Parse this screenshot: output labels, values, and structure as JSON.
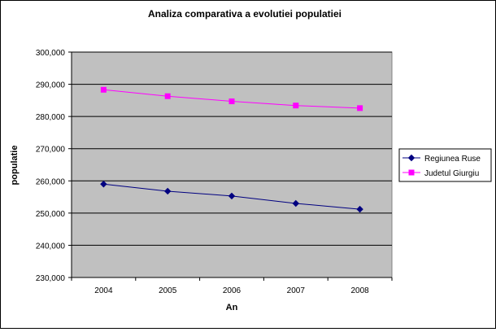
{
  "chart_data": {
    "type": "line",
    "title": "Analiza comparativa a evolutiei populatiei",
    "xlabel": "An",
    "ylabel": "populatie",
    "categories": [
      "2004",
      "2005",
      "2006",
      "2007",
      "2008"
    ],
    "ylim": [
      230000,
      300000
    ],
    "yticks": [
      "230,000",
      "240,000",
      "250,000",
      "260,000",
      "270,000",
      "280,000",
      "290,000",
      "300,000"
    ],
    "ytick_values": [
      230000,
      240000,
      250000,
      260000,
      270000,
      280000,
      290000,
      300000
    ],
    "grid": true,
    "legend_position": "right",
    "series": [
      {
        "name": "Regiunea Ruse",
        "values": [
          259000,
          256800,
          255300,
          253000,
          251200
        ],
        "color": "#000080",
        "marker": "diamond"
      },
      {
        "name": "Judetul Giurgiu",
        "values": [
          288300,
          286300,
          284700,
          283400,
          282600
        ],
        "color": "#ff00ff",
        "marker": "square"
      }
    ],
    "plot_background": "#c0c0c0"
  }
}
